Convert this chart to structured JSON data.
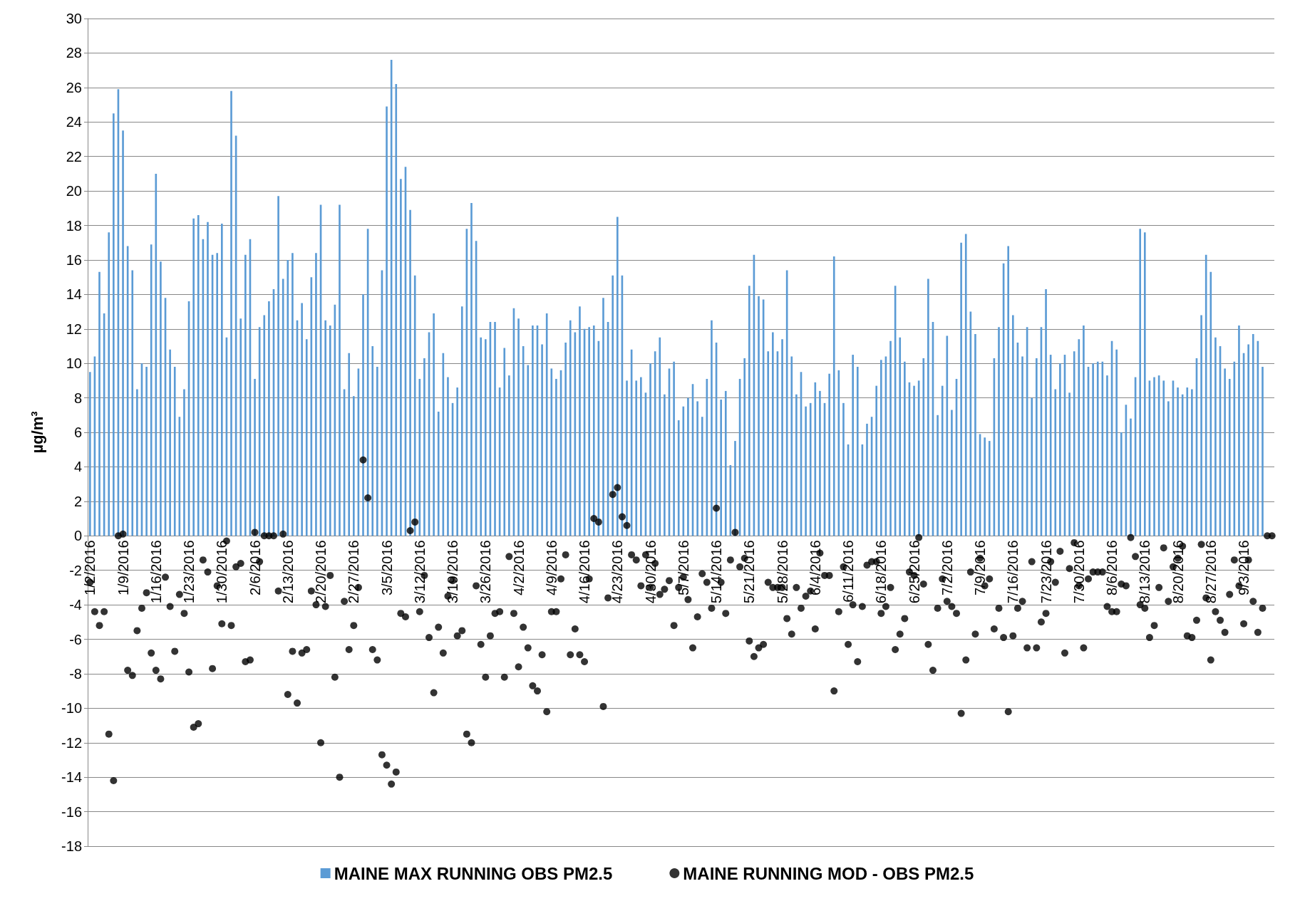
{
  "chart_data": {
    "type": "bar",
    "ylabel": "µg/m³",
    "categories": [
      "1/2/2016",
      null,
      null,
      null,
      null,
      null,
      null,
      "1/9/2016",
      null,
      null,
      null,
      null,
      null,
      null,
      "1/16/2016",
      null,
      null,
      null,
      null,
      null,
      null,
      "1/23/2016",
      null,
      null,
      null,
      null,
      null,
      null,
      "1/30/2016",
      null,
      null,
      null,
      null,
      null,
      null,
      "2/6/2016",
      null,
      null,
      null,
      null,
      null,
      null,
      "2/13/2016",
      null,
      null,
      null,
      null,
      null,
      null,
      "2/20/2016",
      null,
      null,
      null,
      null,
      null,
      null,
      "2/27/2016",
      null,
      null,
      null,
      null,
      null,
      null,
      "3/5/2016",
      null,
      null,
      null,
      null,
      null,
      null,
      "3/12/2016",
      null,
      null,
      null,
      null,
      null,
      null,
      "3/19/2016",
      null,
      null,
      null,
      null,
      null,
      null,
      "3/26/2016",
      null,
      null,
      null,
      null,
      null,
      null,
      "4/2/2016",
      null,
      null,
      null,
      null,
      null,
      null,
      "4/9/2016",
      null,
      null,
      null,
      null,
      null,
      null,
      "4/16/2016",
      null,
      null,
      null,
      null,
      null,
      null,
      "4/23/2016",
      null,
      null,
      null,
      null,
      null,
      null,
      "4/30/2016",
      null,
      null,
      null,
      null,
      null,
      null,
      "5/7/2016",
      null,
      null,
      null,
      null,
      null,
      null,
      "5/14/2016",
      null,
      null,
      null,
      null,
      null,
      null,
      "5/21/2016",
      null,
      null,
      null,
      null,
      null,
      null,
      "5/28/2016",
      null,
      null,
      null,
      null,
      null,
      null,
      "6/4/2016",
      null,
      null,
      null,
      null,
      null,
      null,
      "6/11/2016",
      null,
      null,
      null,
      null,
      null,
      null,
      "6/18/2016",
      null,
      null,
      null,
      null,
      null,
      null,
      "6/25/2016",
      null,
      null,
      null,
      null,
      null,
      null,
      "7/2/2016",
      null,
      null,
      null,
      null,
      null,
      null,
      "7/9/2016",
      null,
      null,
      null,
      null,
      null,
      null,
      "7/16/2016",
      null,
      null,
      null,
      null,
      null,
      null,
      "7/23/2016",
      null,
      null,
      null,
      null,
      null,
      null,
      "7/30/2016",
      null,
      null,
      null,
      null,
      null,
      null,
      "8/6/2016",
      null,
      null,
      null,
      null,
      null,
      null,
      "8/13/2016",
      null,
      null,
      null,
      null,
      null,
      null,
      "8/20/2016",
      null,
      null,
      null,
      null,
      null,
      null,
      "8/27/2016",
      null,
      null,
      null,
      null,
      null,
      null,
      "9/3/2016",
      null,
      null,
      null,
      null,
      null,
      null
    ],
    "series": [
      {
        "name": "MAINE MAX RUNNING OBS PM2.5",
        "color": "#5b9bd5",
        "values": [
          9.5,
          10.4,
          15.3,
          12.9,
          17.6,
          24.5,
          25.9,
          23.5,
          16.8,
          15.4,
          8.5,
          10.0,
          9.8,
          16.9,
          21.0,
          15.9,
          13.8,
          10.8,
          9.8,
          6.9,
          8.5,
          13.6,
          18.4,
          18.6,
          17.2,
          18.2,
          16.3,
          16.4,
          18.1,
          11.5,
          25.8,
          23.2,
          12.6,
          16.3,
          17.2,
          9.1,
          12.1,
          12.8,
          13.6,
          14.3,
          19.7,
          14.9,
          16.0,
          16.4,
          12.5,
          13.5,
          11.4,
          15.0,
          16.4,
          19.2,
          12.5,
          12.2,
          13.4,
          19.2,
          8.5,
          10.6,
          8.1,
          9.7,
          14.0,
          17.8,
          11.0,
          9.8,
          15.4,
          24.9,
          27.6,
          26.2,
          20.7,
          21.4,
          18.9,
          15.1,
          9.1,
          10.3,
          11.8,
          12.9,
          7.2,
          10.6,
          9.2,
          7.7,
          8.6,
          13.3,
          17.8,
          19.3,
          17.1,
          11.5,
          11.4,
          12.4,
          12.4,
          8.6,
          10.9,
          9.3,
          13.2,
          12.6,
          11.0,
          9.9,
          12.2,
          12.2,
          11.1,
          12.9,
          9.7,
          9.1,
          9.6,
          11.2,
          12.5,
          11.8,
          13.3,
          12.0,
          12.1,
          12.2,
          11.3,
          13.8,
          12.4,
          15.1,
          18.5,
          15.1,
          9.0,
          10.8,
          9.0,
          9.2,
          8.3,
          10.0,
          10.7,
          11.5,
          8.2,
          9.7,
          10.1,
          6.7,
          7.5,
          8.0,
          8.8,
          7.8,
          6.9,
          9.1,
          12.5,
          11.2,
          7.9,
          8.4,
          4.1,
          5.5,
          9.1,
          10.3,
          14.5,
          16.3,
          13.9,
          13.7,
          10.7,
          11.8,
          10.7,
          11.4,
          15.4,
          10.4,
          8.2,
          9.5,
          7.5,
          7.7,
          8.9,
          8.4,
          7.7,
          9.4,
          16.2,
          9.6,
          7.7,
          5.3,
          10.5,
          9.8,
          5.3,
          6.5,
          6.9,
          8.7,
          10.2,
          10.4,
          11.3,
          14.5,
          11.5,
          10.1,
          8.9,
          8.7,
          9.0,
          10.3,
          14.9,
          12.4,
          7.0,
          8.7,
          11.6,
          7.3,
          9.1,
          17.0,
          17.5,
          13.0,
          11.7,
          5.9,
          5.7,
          5.5,
          10.3,
          12.1,
          15.8,
          16.8,
          12.8,
          11.2,
          10.4,
          12.1,
          8.0,
          10.3,
          12.1,
          14.3,
          10.5,
          8.5,
          10.0,
          10.5,
          8.3,
          10.7,
          11.4,
          12.2,
          9.8,
          10.0,
          10.1,
          10.1,
          9.3,
          11.3,
          10.8,
          6.0,
          7.6,
          6.8,
          9.2,
          17.8,
          17.6,
          9.0,
          9.2,
          9.3,
          9.0,
          7.8,
          9.0,
          8.6,
          8.2,
          8.6,
          8.5,
          10.3,
          12.8,
          16.3,
          15.3,
          11.5,
          11.0,
          9.7,
          9.1,
          10.1,
          12.2,
          10.6,
          11.1,
          11.7,
          11.3,
          9.8,
          null,
          null
        ]
      },
      {
        "name": "MAINE RUNNING MOD - OBS PM2.5",
        "type": "scatter",
        "color": "#000000",
        "values": [
          -2.7,
          -4.4,
          -5.2,
          -4.4,
          -11.5,
          -14.2,
          0,
          0.1,
          -7.8,
          -8.1,
          -5.5,
          -4.2,
          -3.3,
          -6.8,
          -7.8,
          -8.3,
          -2.4,
          -4.1,
          -6.7,
          -3.4,
          -4.5,
          -7.9,
          -11.1,
          -10.9,
          -1.4,
          -2.1,
          -7.7,
          -2.9,
          -5.1,
          -0.3,
          -5.2,
          -1.8,
          -1.6,
          -7.3,
          -7.2,
          0.2,
          -1.5,
          0,
          0,
          0,
          -3.2,
          0.1,
          -9.2,
          -6.7,
          -9.7,
          -6.8,
          -6.6,
          -3.2,
          -4.0,
          -12.0,
          -4.1,
          -2.3,
          -8.2,
          -14.0,
          -3.8,
          -6.6,
          -5.2,
          -3.0,
          4.4,
          2.2,
          -6.6,
          -7.2,
          -12.7,
          -13.3,
          -14.4,
          -13.7,
          -4.5,
          -4.7,
          0.3,
          0.8,
          -4.4,
          -2.3,
          -5.9,
          -9.1,
          -5.3,
          -6.8,
          -3.5,
          -2.6,
          -5.8,
          -5.5,
          -11.5,
          -12.0,
          -2.9,
          -6.3,
          -8.2,
          -5.8,
          -4.5,
          -4.4,
          -8.2,
          -1.2,
          -4.5,
          -7.6,
          -5.3,
          -6.5,
          -8.7,
          -9.0,
          -6.9,
          -10.2,
          -4.4,
          -4.4,
          -2.5,
          -1.1,
          -6.9,
          -5.4,
          -6.9,
          -7.3,
          -2.5,
          1.0,
          0.8,
          -9.9,
          -3.6,
          2.4,
          2.8,
          1.1,
          0.6,
          -1.1,
          -1.4,
          -2.9,
          -1.1,
          -3.0,
          -1.6,
          -3.4,
          -3.1,
          -2.6,
          -5.2,
          -3.0,
          -2.4,
          -3.7,
          -6.5,
          -4.7,
          -2.2,
          -2.7,
          -4.2,
          1.6,
          -2.7,
          -4.5,
          -1.4,
          0.2,
          -1.8,
          -1.3,
          -6.1,
          -7.0,
          -6.5,
          -6.3,
          -2.7,
          -3.0,
          -3.0,
          -3.0,
          -4.8,
          -5.7,
          -3.0,
          -4.2,
          -3.5,
          -3.2,
          -5.4,
          -1.0,
          -2.3,
          -2.3,
          -9.0,
          -4.4,
          -1.8,
          -6.3,
          -4.0,
          -7.3,
          -4.1,
          -1.7,
          -1.5,
          -1.5,
          -4.5,
          -4.1,
          -3.0,
          -6.6,
          -5.7,
          -4.8,
          -2.1,
          -2.3,
          -0.1,
          -2.8,
          -6.3,
          -7.8,
          -4.2,
          -2.5,
          -3.8,
          -4.1,
          -4.5,
          -10.3,
          -7.2,
          -2.1,
          -5.7,
          -1.3,
          -2.9,
          -2.5,
          -5.4,
          -4.2,
          -5.9,
          -10.2,
          -5.8,
          -4.2,
          -3.8,
          -6.5,
          -1.5,
          -6.5,
          -5.0,
          -4.5,
          -1.5,
          -2.7,
          -0.9,
          -6.8,
          -1.9,
          -0.4,
          -2.9,
          -6.5,
          -2.5,
          -2.1,
          -2.1,
          -2.1,
          -4.1,
          -4.4,
          -4.4,
          -2.8,
          -2.9,
          -0.1,
          -1.2,
          -4.0,
          -4.2,
          -5.9,
          -5.2,
          -3.0,
          -0.7,
          -3.8,
          -1.8,
          -1.3,
          -0.6,
          -5.8,
          -5.9,
          -4.9,
          -0.5,
          -3.6,
          -7.2,
          -4.4,
          -4.9,
          -5.6,
          -3.4,
          -1.4,
          -2.9,
          -5.1,
          -1.4,
          -3.8,
          -5.6,
          -4.2,
          0,
          0
        ]
      }
    ],
    "ylim": [
      -18,
      30
    ],
    "yticks": [
      -18,
      -16,
      -14,
      -12,
      -10,
      -8,
      -6,
      -4,
      -2,
      0,
      2,
      4,
      6,
      8,
      10,
      12,
      14,
      16,
      18,
      20,
      22,
      24,
      26,
      28,
      30
    ],
    "grid": "y",
    "legend": "bottom",
    "marker": "circle"
  }
}
